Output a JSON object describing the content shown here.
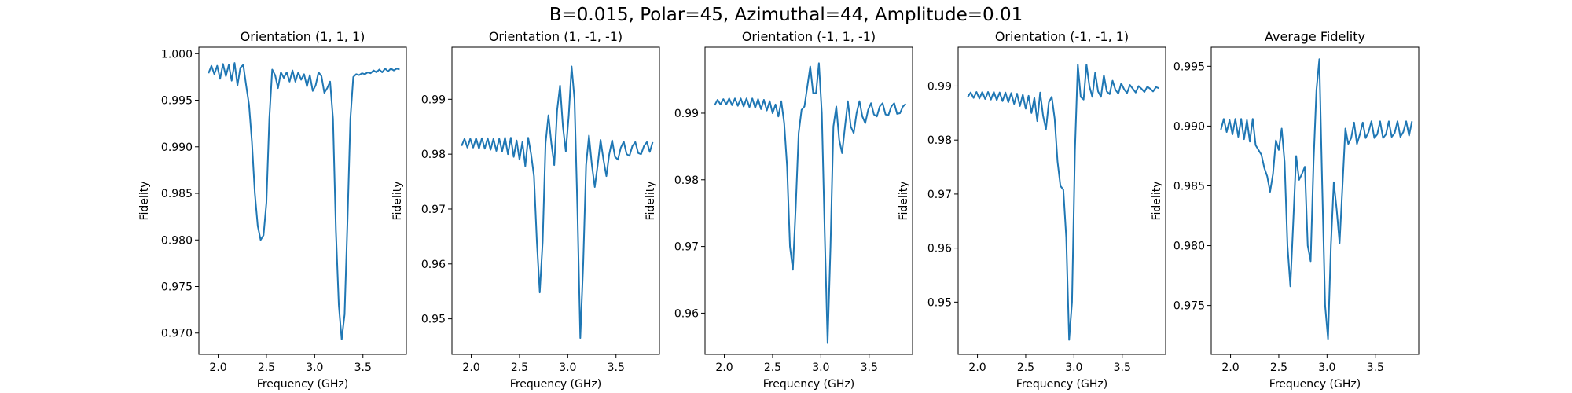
{
  "figure": {
    "suptitle": "B=0.015, Polar=45, Azimuthal=44, Amplitude=0.01",
    "line_color": "#1f77b4"
  },
  "chart_data": [
    {
      "type": "line",
      "title": "Orientation (1, 1, 1)",
      "xlabel": "Frequency (GHz)",
      "ylabel": "Fidelity",
      "xlim": [
        1.8,
        3.95
      ],
      "ylim": [
        0.9677,
        1.0007
      ],
      "xticks": [
        2.0,
        2.5,
        3.0,
        3.5
      ],
      "yticks": [
        0.97,
        0.975,
        0.98,
        0.985,
        0.99,
        0.995,
        1.0
      ],
      "ytick_labels": [
        "0.970",
        "0.975",
        "0.980",
        "0.985",
        "0.990",
        "0.995",
        "1.000"
      ],
      "series": [
        {
          "x": [
            1.9,
            1.93,
            1.96,
            1.99,
            2.02,
            2.05,
            2.08,
            2.11,
            2.14,
            2.17,
            2.2,
            2.23,
            2.26,
            2.29,
            2.32,
            2.35,
            2.38,
            2.41,
            2.44,
            2.47,
            2.5,
            2.53,
            2.56,
            2.59,
            2.62,
            2.65,
            2.68,
            2.71,
            2.74,
            2.77,
            2.8,
            2.83,
            2.86,
            2.89,
            2.92,
            2.95,
            2.98,
            3.01,
            3.04,
            3.07,
            3.1,
            3.13,
            3.16,
            3.19,
            3.22,
            3.25,
            3.28,
            3.31,
            3.34,
            3.37,
            3.4,
            3.43,
            3.46,
            3.49,
            3.52,
            3.55,
            3.58,
            3.61,
            3.64,
            3.67,
            3.7,
            3.73,
            3.76,
            3.79,
            3.82,
            3.85,
            3.88
          ],
          "y": [
            0.9979,
            0.9987,
            0.9978,
            0.9987,
            0.9973,
            0.9989,
            0.9976,
            0.9988,
            0.9971,
            0.999,
            0.9966,
            0.9985,
            0.9988,
            0.9966,
            0.9945,
            0.9905,
            0.985,
            0.9815,
            0.98,
            0.9805,
            0.984,
            0.993,
            0.9983,
            0.9977,
            0.9963,
            0.998,
            0.9974,
            0.998,
            0.997,
            0.9982,
            0.997,
            0.998,
            0.9972,
            0.9978,
            0.9965,
            0.9977,
            0.996,
            0.9966,
            0.998,
            0.9976,
            0.9958,
            0.9963,
            0.997,
            0.993,
            0.981,
            0.973,
            0.9693,
            0.972,
            0.982,
            0.993,
            0.9975,
            0.9978,
            0.9977,
            0.9979,
            0.9978,
            0.998,
            0.9979,
            0.9982,
            0.998,
            0.9983,
            0.998,
            0.9984,
            0.9981,
            0.9984,
            0.9982,
            0.9984,
            0.9983
          ]
        }
      ]
    },
    {
      "type": "line",
      "title": "Orientation (1, -1, -1)",
      "xlabel": "Frequency (GHz)",
      "ylabel": "Fidelity",
      "xlim": [
        1.8,
        3.95
      ],
      "ylim": [
        0.9435,
        0.9995
      ],
      "xticks": [
        2.0,
        2.5,
        3.0,
        3.5
      ],
      "yticks": [
        0.95,
        0.96,
        0.97,
        0.98,
        0.99
      ],
      "ytick_labels": [
        "0.95",
        "0.96",
        "0.97",
        "0.98",
        "0.99"
      ],
      "series": [
        {
          "x": [
            1.9,
            1.93,
            1.96,
            1.99,
            2.02,
            2.05,
            2.08,
            2.11,
            2.14,
            2.17,
            2.2,
            2.23,
            2.26,
            2.29,
            2.32,
            2.35,
            2.38,
            2.41,
            2.44,
            2.47,
            2.5,
            2.53,
            2.56,
            2.59,
            2.62,
            2.65,
            2.68,
            2.71,
            2.74,
            2.77,
            2.8,
            2.83,
            2.86,
            2.89,
            2.92,
            2.95,
            2.98,
            3.01,
            3.04,
            3.07,
            3.1,
            3.13,
            3.16,
            3.19,
            3.22,
            3.25,
            3.28,
            3.31,
            3.34,
            3.37,
            3.4,
            3.43,
            3.46,
            3.49,
            3.52,
            3.55,
            3.58,
            3.61,
            3.64,
            3.67,
            3.7,
            3.73,
            3.76,
            3.79,
            3.82,
            3.85,
            3.88
          ],
          "y": [
            0.9815,
            0.9828,
            0.9812,
            0.9828,
            0.9812,
            0.9829,
            0.981,
            0.9829,
            0.981,
            0.9829,
            0.9808,
            0.9828,
            0.9806,
            0.9828,
            0.9805,
            0.983,
            0.98,
            0.983,
            0.9795,
            0.9825,
            0.979,
            0.9822,
            0.9778,
            0.983,
            0.98,
            0.976,
            0.964,
            0.9548,
            0.964,
            0.982,
            0.9871,
            0.982,
            0.978,
            0.988,
            0.9925,
            0.985,
            0.9805,
            0.987,
            0.996,
            0.99,
            0.97,
            0.9465,
            0.96,
            0.978,
            0.9834,
            0.978,
            0.974,
            0.978,
            0.9826,
            0.979,
            0.976,
            0.98,
            0.9825,
            0.9795,
            0.979,
            0.9812,
            0.9823,
            0.98,
            0.9797,
            0.9815,
            0.9822,
            0.9802,
            0.98,
            0.9815,
            0.9822,
            0.9804,
            0.9822
          ]
        }
      ]
    },
    {
      "type": "line",
      "title": "Orientation (-1, 1, -1)",
      "xlabel": "Frequency (GHz)",
      "ylabel": "Fidelity",
      "xlim": [
        1.8,
        3.95
      ],
      "ylim": [
        0.9538,
        0.9999
      ],
      "xticks": [
        2.0,
        2.5,
        3.0,
        3.5
      ],
      "yticks": [
        0.96,
        0.97,
        0.98,
        0.99
      ],
      "ytick_labels": [
        "0.96",
        "0.97",
        "0.98",
        "0.99"
      ],
      "series": [
        {
          "x": [
            1.9,
            1.93,
            1.96,
            1.99,
            2.02,
            2.05,
            2.08,
            2.11,
            2.14,
            2.17,
            2.2,
            2.23,
            2.26,
            2.29,
            2.32,
            2.35,
            2.38,
            2.41,
            2.44,
            2.47,
            2.5,
            2.53,
            2.56,
            2.59,
            2.62,
            2.65,
            2.68,
            2.71,
            2.74,
            2.77,
            2.8,
            2.83,
            2.86,
            2.89,
            2.92,
            2.95,
            2.98,
            3.01,
            3.04,
            3.07,
            3.1,
            3.13,
            3.16,
            3.19,
            3.22,
            3.25,
            3.28,
            3.31,
            3.34,
            3.37,
            3.4,
            3.43,
            3.46,
            3.49,
            3.52,
            3.55,
            3.58,
            3.61,
            3.64,
            3.67,
            3.7,
            3.73,
            3.76,
            3.79,
            3.82,
            3.85,
            3.88
          ],
          "y": [
            0.9912,
            0.992,
            0.9913,
            0.9921,
            0.9913,
            0.9922,
            0.9912,
            0.9922,
            0.9911,
            0.9922,
            0.991,
            0.9922,
            0.9909,
            0.9922,
            0.9908,
            0.9921,
            0.9906,
            0.992,
            0.9904,
            0.9918,
            0.99,
            0.9913,
            0.9895,
            0.9918,
            0.9885,
            0.982,
            0.97,
            0.9665,
            0.976,
            0.987,
            0.9905,
            0.991,
            0.994,
            0.997,
            0.993,
            0.993,
            0.9975,
            0.99,
            0.972,
            0.9555,
            0.97,
            0.988,
            0.991,
            0.986,
            0.984,
            0.988,
            0.9918,
            0.988,
            0.987,
            0.99,
            0.9918,
            0.9895,
            0.9885,
            0.9905,
            0.9915,
            0.9898,
            0.9895,
            0.991,
            0.9915,
            0.9898,
            0.9897,
            0.991,
            0.9915,
            0.9899,
            0.99,
            0.991,
            0.9914
          ]
        }
      ]
    },
    {
      "type": "line",
      "title": "Orientation (-1, -1, 1)",
      "xlabel": "Frequency (GHz)",
      "ylabel": "Fidelity",
      "xlim": [
        1.8,
        3.95
      ],
      "ylim": [
        0.9403,
        0.9972
      ],
      "xticks": [
        2.0,
        2.5,
        3.0,
        3.5
      ],
      "yticks": [
        0.95,
        0.96,
        0.97,
        0.98,
        0.99
      ],
      "ytick_labels": [
        "0.95",
        "0.96",
        "0.97",
        "0.98",
        "0.99"
      ],
      "series": [
        {
          "x": [
            1.9,
            1.93,
            1.96,
            1.99,
            2.02,
            2.05,
            2.08,
            2.11,
            2.14,
            2.17,
            2.2,
            2.23,
            2.26,
            2.29,
            2.32,
            2.35,
            2.38,
            2.41,
            2.44,
            2.47,
            2.5,
            2.53,
            2.56,
            2.59,
            2.62,
            2.65,
            2.68,
            2.71,
            2.74,
            2.77,
            2.8,
            2.83,
            2.86,
            2.89,
            2.92,
            2.95,
            2.98,
            3.01,
            3.04,
            3.07,
            3.1,
            3.13,
            3.16,
            3.19,
            3.22,
            3.25,
            3.28,
            3.31,
            3.34,
            3.37,
            3.4,
            3.43,
            3.46,
            3.49,
            3.52,
            3.55,
            3.58,
            3.61,
            3.64,
            3.67,
            3.7,
            3.73,
            3.76,
            3.79,
            3.82,
            3.85,
            3.88
          ],
          "y": [
            0.988,
            0.9888,
            0.9878,
            0.9889,
            0.9877,
            0.9889,
            0.9876,
            0.9889,
            0.9875,
            0.9889,
            0.9874,
            0.9888,
            0.9872,
            0.9888,
            0.987,
            0.9887,
            0.9867,
            0.9886,
            0.9863,
            0.9884,
            0.9858,
            0.9882,
            0.985,
            0.9878,
            0.9835,
            0.9888,
            0.9845,
            0.982,
            0.987,
            0.988,
            0.984,
            0.976,
            0.9715,
            0.9708,
            0.962,
            0.943,
            0.95,
            0.978,
            0.994,
            0.988,
            0.9875,
            0.994,
            0.99,
            0.988,
            0.9925,
            0.989,
            0.988,
            0.992,
            0.989,
            0.9885,
            0.991,
            0.9893,
            0.9886,
            0.9905,
            0.9894,
            0.9887,
            0.9902,
            0.9895,
            0.9888,
            0.99,
            0.9895,
            0.9889,
            0.9899,
            0.9895,
            0.989,
            0.9898,
            0.9896
          ]
        }
      ]
    },
    {
      "type": "line",
      "title": "Average Fidelity",
      "xlabel": "Frequency (GHz)",
      "ylabel": "Fidelity",
      "xlim": [
        1.8,
        3.95
      ],
      "ylim": [
        0.9709,
        0.9966
      ],
      "xticks": [
        2.0,
        2.5,
        3.0,
        3.5
      ],
      "yticks": [
        0.975,
        0.98,
        0.985,
        0.99,
        0.995
      ],
      "ytick_labels": [
        "0.975",
        "0.980",
        "0.985",
        "0.990",
        "0.995"
      ],
      "series": [
        {
          "x": [
            1.9,
            1.93,
            1.96,
            1.99,
            2.02,
            2.05,
            2.08,
            2.11,
            2.14,
            2.17,
            2.2,
            2.23,
            2.26,
            2.29,
            2.32,
            2.35,
            2.38,
            2.41,
            2.44,
            2.47,
            2.5,
            2.53,
            2.56,
            2.59,
            2.62,
            2.65,
            2.68,
            2.71,
            2.74,
            2.77,
            2.8,
            2.83,
            2.86,
            2.89,
            2.92,
            2.95,
            2.98,
            3.01,
            3.04,
            3.07,
            3.1,
            3.13,
            3.16,
            3.19,
            3.22,
            3.25,
            3.28,
            3.31,
            3.34,
            3.37,
            3.4,
            3.43,
            3.46,
            3.49,
            3.52,
            3.55,
            3.58,
            3.61,
            3.64,
            3.67,
            3.7,
            3.73,
            3.76,
            3.79,
            3.82,
            3.85,
            3.88
          ],
          "y": [
            0.9897,
            0.9906,
            0.9895,
            0.9905,
            0.9893,
            0.9906,
            0.9891,
            0.9906,
            0.9889,
            0.9905,
            0.9887,
            0.9906,
            0.9884,
            0.988,
            0.9876,
            0.9865,
            0.9858,
            0.9845,
            0.986,
            0.9888,
            0.988,
            0.9898,
            0.987,
            0.98,
            0.9766,
            0.982,
            0.9875,
            0.9855,
            0.986,
            0.9866,
            0.98,
            0.9787,
            0.987,
            0.993,
            0.9956,
            0.985,
            0.975,
            0.9722,
            0.98,
            0.9853,
            0.983,
            0.9802,
            0.985,
            0.9898,
            0.9885,
            0.989,
            0.9903,
            0.9885,
            0.9893,
            0.9903,
            0.989,
            0.9895,
            0.9904,
            0.989,
            0.9893,
            0.9904,
            0.989,
            0.9893,
            0.9904,
            0.9891,
            0.9894,
            0.9904,
            0.9891,
            0.9895,
            0.9904,
            0.9892,
            0.9904
          ]
        }
      ]
    }
  ]
}
